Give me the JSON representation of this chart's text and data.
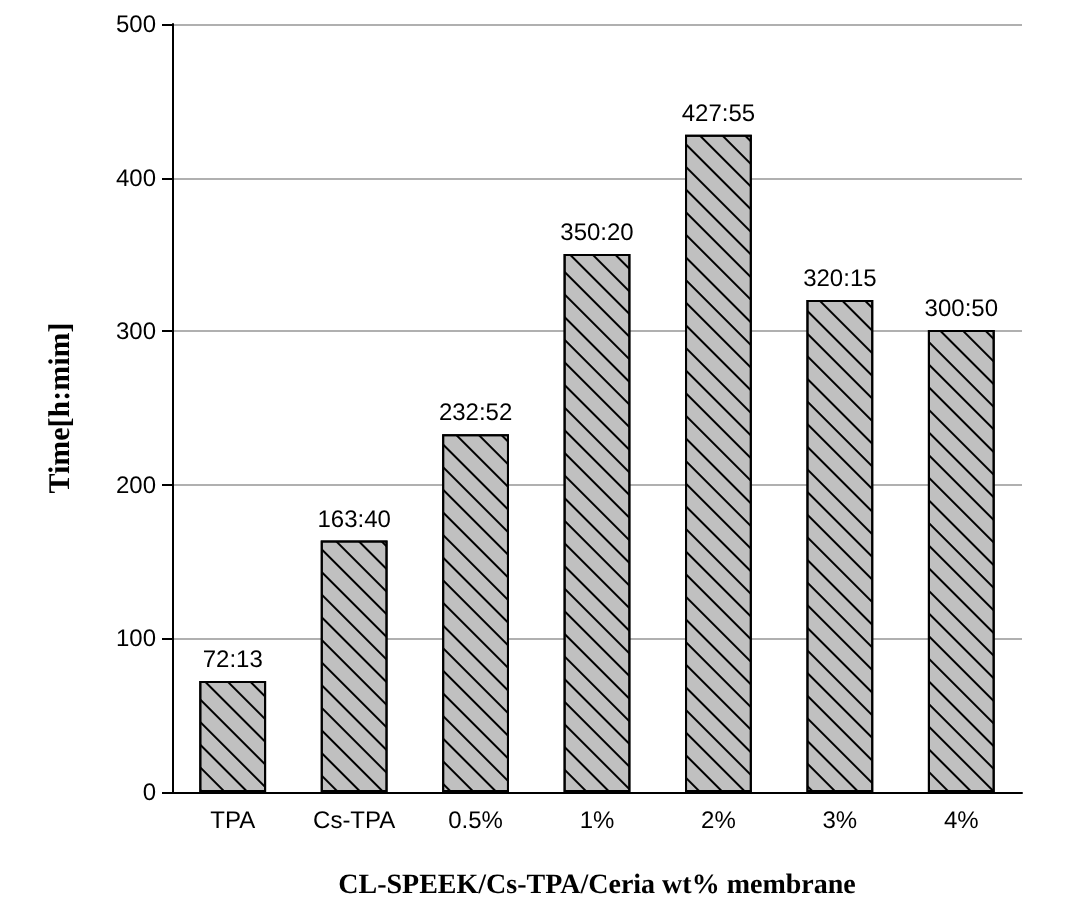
{
  "chart_data": {
    "type": "bar",
    "xlabel": "CL-SPEEK/Cs-TPA/Ceria wt% membrane",
    "ylabel": "Time[h:mim]",
    "categories": [
      "TPA",
      "Cs-TPA",
      "0.5%",
      "1%",
      "2%",
      "3%",
      "4%"
    ],
    "values": [
      72.22,
      163.67,
      232.87,
      350.33,
      427.92,
      320.25,
      300.83
    ],
    "value_labels": [
      "72:13",
      "163:40",
      "232:52",
      "350:20",
      "427:55",
      "320:15",
      "300:50"
    ],
    "color": "#c0c0c0",
    "ylim": [
      0,
      500
    ],
    "yticks": [
      0,
      100,
      200,
      300,
      400,
      500
    ],
    "grid": "y"
  }
}
